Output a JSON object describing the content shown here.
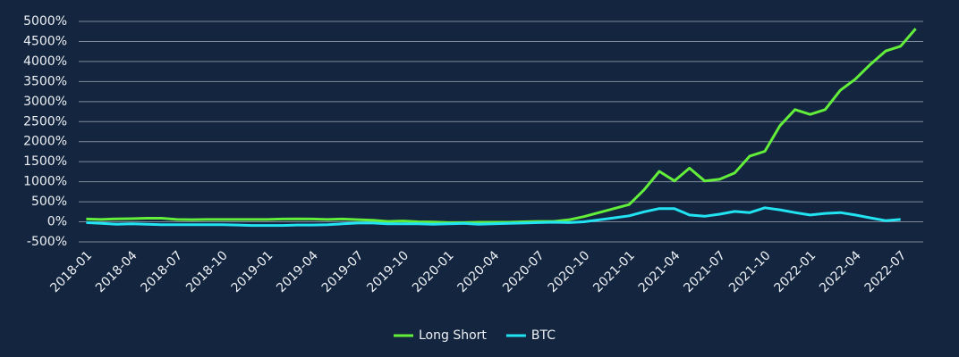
{
  "chart_data": {
    "type": "line",
    "categories": [
      "2018-01",
      null,
      null,
      "2018-04",
      null,
      null,
      "2018-07",
      null,
      null,
      "2018-10",
      null,
      null,
      "2019-01",
      null,
      null,
      "2019-04",
      null,
      null,
      "2019-07",
      null,
      null,
      "2019-10",
      null,
      null,
      "2020-01",
      null,
      null,
      "2020-04",
      null,
      null,
      "2020-07",
      null,
      null,
      "2020-10",
      null,
      null,
      "2021-01",
      null,
      null,
      "2021-04",
      null,
      null,
      "2021-07",
      null,
      null,
      "2021-10",
      null,
      null,
      "2022-01",
      null,
      null,
      "2022-04",
      null,
      null,
      "2022-07",
      null
    ],
    "series": [
      {
        "name": "Long Short",
        "color": "#63ee3a",
        "values": [
          70,
          60,
          75,
          80,
          90,
          90,
          60,
          55,
          60,
          60,
          60,
          60,
          60,
          70,
          75,
          70,
          60,
          70,
          55,
          40,
          10,
          20,
          0,
          -5,
          -20,
          -20,
          -10,
          -10,
          -10,
          0,
          10,
          10,
          50,
          130,
          230,
          330,
          430,
          800,
          1260,
          1020,
          1340,
          1020,
          1060,
          1220,
          1640,
          1760,
          2400,
          2800,
          2680,
          2800,
          3280,
          3560,
          3930,
          4260,
          4380,
          4820
        ]
      },
      {
        "name": "BTC",
        "color": "#22e3f2",
        "values": [
          -20,
          -40,
          -60,
          -50,
          -60,
          -70,
          -70,
          -70,
          -70,
          -70,
          -80,
          -90,
          -90,
          -90,
          -80,
          -80,
          -70,
          -50,
          -30,
          -30,
          -50,
          -50,
          -50,
          -60,
          -50,
          -40,
          -60,
          -50,
          -40,
          -30,
          -20,
          -10,
          -20,
          0,
          50,
          100,
          150,
          250,
          330,
          330,
          170,
          140,
          190,
          260,
          230,
          350,
          300,
          230,
          170,
          210,
          230,
          170,
          100,
          30,
          60,
          null
        ]
      }
    ],
    "ylim": [
      -500,
      5000
    ],
    "yticks": [
      {
        "value": -500,
        "label": "-500%"
      },
      {
        "value": 0,
        "label": "0%"
      },
      {
        "value": 500,
        "label": "500%"
      },
      {
        "value": 1000,
        "label": "1000%"
      },
      {
        "value": 1500,
        "label": "1500%"
      },
      {
        "value": 2000,
        "label": "2000%"
      },
      {
        "value": 2500,
        "label": "2500%"
      },
      {
        "value": 3000,
        "label": "3000%"
      },
      {
        "value": 3500,
        "label": "3500%"
      },
      {
        "value": 4000,
        "label": "4000%"
      },
      {
        "value": 4500,
        "label": "4500%"
      },
      {
        "value": 5000,
        "label": "5000%"
      }
    ],
    "grid": true,
    "legend": "bottom"
  }
}
